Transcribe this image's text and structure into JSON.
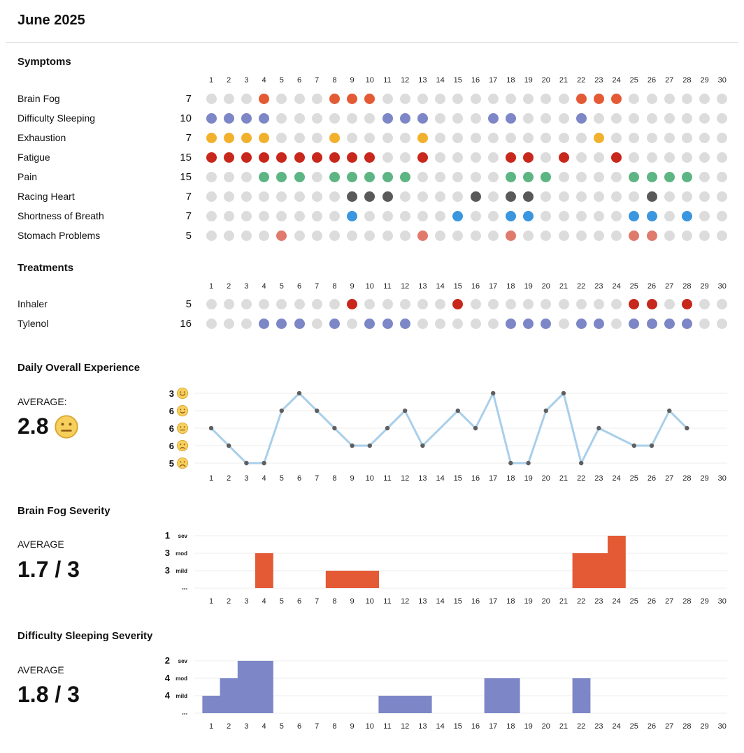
{
  "title": "June 2025",
  "days": [
    "1",
    "2",
    "3",
    "4",
    "5",
    "6",
    "7",
    "8",
    "9",
    "10",
    "11",
    "12",
    "13",
    "14",
    "15",
    "16",
    "17",
    "18",
    "19",
    "20",
    "21",
    "22",
    "23",
    "24",
    "25",
    "26",
    "27",
    "28",
    "29",
    "30"
  ],
  "empty_color": "#dcdcdc",
  "symptoms": {
    "heading": "Symptoms",
    "rows": [
      {
        "label": "Brain Fog",
        "count": "7",
        "color": "#e35a35",
        "days": [
          4,
          8,
          9,
          10,
          22,
          23,
          24
        ]
      },
      {
        "label": "Difficulty Sleeping",
        "count": "10",
        "color": "#7d86c6",
        "days": [
          1,
          2,
          3,
          4,
          11,
          12,
          13,
          17,
          18,
          22
        ]
      },
      {
        "label": "Exhaustion",
        "count": "7",
        "color": "#f2b12c",
        "days": [
          1,
          2,
          3,
          4,
          8,
          13,
          23
        ]
      },
      {
        "label": "Fatigue",
        "count": "15",
        "color": "#c8271c",
        "days": [
          1,
          2,
          3,
          4,
          5,
          6,
          7,
          8,
          9,
          10,
          13,
          18,
          19,
          21,
          24
        ]
      },
      {
        "label": "Pain",
        "count": "15",
        "color": "#5cb583",
        "days": [
          4,
          5,
          6,
          8,
          9,
          10,
          11,
          12,
          18,
          19,
          20,
          25,
          26,
          27,
          28
        ]
      },
      {
        "label": "Racing Heart",
        "count": "7",
        "color": "#595959",
        "days": [
          9,
          10,
          11,
          16,
          18,
          19,
          26
        ]
      },
      {
        "label": "Shortness of Breath",
        "count": "7",
        "color": "#3a96de",
        "days": [
          9,
          15,
          18,
          19,
          25,
          26,
          28
        ]
      },
      {
        "label": "Stomach Problems",
        "count": "5",
        "color": "#df7a6d",
        "days": [
          5,
          13,
          18,
          25,
          26
        ]
      }
    ]
  },
  "treatments": {
    "heading": "Treatments",
    "rows": [
      {
        "label": "Inhaler",
        "count": "5",
        "color": "#c8271c",
        "days": [
          9,
          15,
          25,
          26,
          28
        ]
      },
      {
        "label": "Tylenol",
        "count": "16",
        "color": "#7d86c6",
        "days": [
          4,
          5,
          6,
          8,
          10,
          11,
          12,
          18,
          19,
          20,
          22,
          23,
          25,
          26,
          27,
          28
        ]
      }
    ]
  },
  "overall": {
    "heading": "Daily Overall Experience",
    "average_label": "AVERAGE:",
    "average_value": "2.8",
    "average_icon": "neutral-face-icon",
    "line_color": "#a9cfea",
    "point_color": "#5f5f5f",
    "levels": [
      {
        "count": "3",
        "icon": "smile-icon"
      },
      {
        "count": "6",
        "icon": "slight-smile-icon"
      },
      {
        "count": "6",
        "icon": "neutral-face-icon"
      },
      {
        "count": "6",
        "icon": "sad-face-icon"
      },
      {
        "count": "5",
        "icon": "very-sad-face-icon"
      }
    ]
  },
  "chart_data": [
    {
      "type": "line",
      "title": "Daily Overall Experience",
      "x": [
        1,
        2,
        3,
        4,
        5,
        6,
        7,
        8,
        9,
        10,
        11,
        12,
        13,
        15,
        16,
        17,
        18,
        19,
        20,
        21,
        22,
        23,
        25,
        26,
        27,
        28
      ],
      "y": [
        3,
        2,
        1,
        1,
        4,
        5,
        4,
        3,
        2,
        2,
        3,
        4,
        2,
        4,
        3,
        5,
        1,
        1,
        4,
        5,
        1,
        3,
        2,
        2,
        4,
        3
      ],
      "ylim": [
        1,
        5
      ],
      "xlim": [
        1,
        30
      ]
    },
    {
      "type": "bar",
      "title": "Brain Fog Severity",
      "color": "#e35a35",
      "average_label": "AVERAGE",
      "average_value": "1.7 / 3",
      "level_labels": [
        {
          "count": "1",
          "label": "sev"
        },
        {
          "count": "3",
          "label": "mod"
        },
        {
          "count": "3",
          "label": "mild"
        },
        {
          "count": "",
          "label": "---"
        }
      ],
      "x": [
        4,
        8,
        9,
        10,
        22,
        23,
        24
      ],
      "values": [
        2,
        1,
        1,
        1,
        2,
        2,
        3
      ],
      "ylim": [
        0,
        3
      ]
    },
    {
      "type": "bar",
      "title": "Difficulty Sleeping Severity",
      "color": "#7d86c6",
      "average_label": "AVERAGE",
      "average_value": "1.8 / 3",
      "level_labels": [
        {
          "count": "2",
          "label": "sev"
        },
        {
          "count": "4",
          "label": "mod"
        },
        {
          "count": "4",
          "label": "mild"
        },
        {
          "count": "",
          "label": "---"
        }
      ],
      "x": [
        1,
        2,
        3,
        4,
        11,
        12,
        13,
        17,
        18,
        22
      ],
      "values": [
        1,
        2,
        3,
        3,
        1,
        1,
        1,
        2,
        2,
        2
      ],
      "ylim": [
        0,
        3
      ]
    }
  ]
}
